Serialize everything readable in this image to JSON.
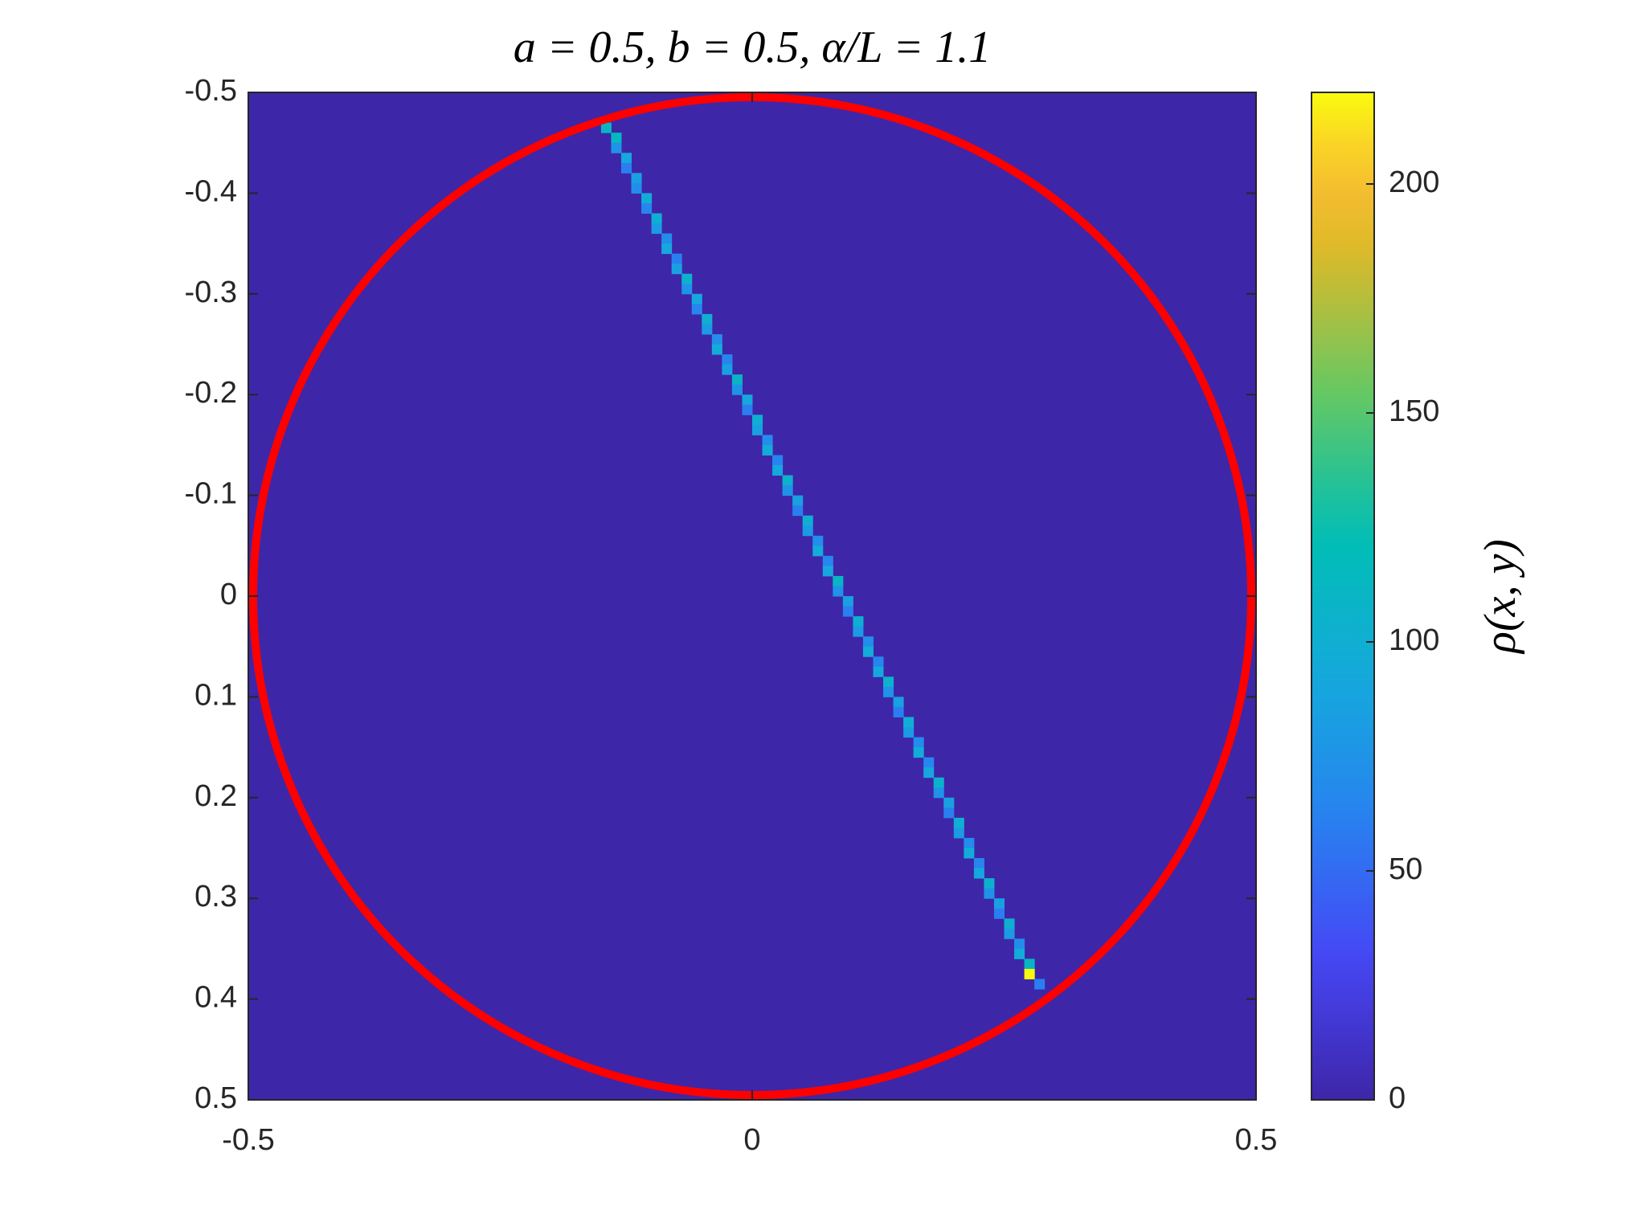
{
  "chart_data": {
    "type": "heatmap",
    "title": "a = 0.5,    b = 0.5,    α/L = 1.1",
    "colorbar_label": "ρ(x, y)",
    "colormap": "parula",
    "x": [
      -0.145,
      -0.135,
      -0.135,
      -0.125,
      -0.125,
      -0.115,
      -0.115,
      -0.105,
      -0.105,
      -0.095,
      -0.095,
      -0.085,
      -0.085,
      -0.075,
      -0.075,
      -0.065,
      -0.065,
      -0.055,
      -0.055,
      -0.045,
      -0.045,
      -0.035,
      -0.035,
      -0.025,
      -0.025,
      -0.015,
      -0.015,
      -0.005,
      -0.005,
      0.005,
      0.005,
      0.015,
      0.015,
      0.025,
      0.025,
      0.035,
      0.035,
      0.045,
      0.045,
      0.055,
      0.055,
      0.065,
      0.065,
      0.075,
      0.075,
      0.085,
      0.085,
      0.095,
      0.095,
      0.105,
      0.105,
      0.115,
      0.115,
      0.125,
      0.125,
      0.135,
      0.135,
      0.145,
      0.145,
      0.155,
      0.155,
      0.165,
      0.165,
      0.175,
      0.175,
      0.185,
      0.185,
      0.195,
      0.195,
      0.205,
      0.205,
      0.215,
      0.215,
      0.225,
      0.225,
      0.235,
      0.235,
      0.245,
      0.245,
      0.255,
      0.255,
      0.265,
      0.265,
      0.275,
      0.275,
      0.285
    ],
    "y": [
      -0.465,
      -0.455,
      -0.445,
      -0.435,
      -0.425,
      -0.415,
      -0.405,
      -0.395,
      -0.385,
      -0.375,
      -0.365,
      -0.355,
      -0.345,
      -0.335,
      -0.325,
      -0.315,
      -0.305,
      -0.295,
      -0.285,
      -0.275,
      -0.265,
      -0.255,
      -0.245,
      -0.235,
      -0.225,
      -0.215,
      -0.205,
      -0.195,
      -0.185,
      -0.175,
      -0.165,
      -0.155,
      -0.145,
      -0.135,
      -0.125,
      -0.115,
      -0.105,
      -0.095,
      -0.085,
      -0.075,
      -0.065,
      -0.055,
      -0.045,
      -0.035,
      -0.025,
      -0.015,
      -0.005,
      0.005,
      0.015,
      0.025,
      0.035,
      0.045,
      0.055,
      0.065,
      0.075,
      0.085,
      0.095,
      0.105,
      0.115,
      0.125,
      0.135,
      0.145,
      0.155,
      0.165,
      0.175,
      0.185,
      0.195,
      0.205,
      0.215,
      0.225,
      0.235,
      0.245,
      0.255,
      0.265,
      0.275,
      0.285,
      0.295,
      0.305,
      0.315,
      0.325,
      0.335,
      0.345,
      0.355,
      0.365,
      0.375,
      0.385
    ],
    "values": [
      110,
      115,
      75,
      90,
      60,
      85,
      70,
      95,
      65,
      100,
      80,
      70,
      90,
      60,
      85,
      105,
      75,
      90,
      65,
      100,
      80,
      70,
      95,
      65,
      85,
      110,
      75,
      90,
      60,
      100,
      85,
      70,
      95,
      65,
      90,
      105,
      75,
      85,
      60,
      100,
      80,
      70,
      95,
      65,
      90,
      110,
      75,
      85,
      60,
      100,
      80,
      70,
      95,
      65,
      90,
      105,
      75,
      85,
      60,
      100,
      80,
      70,
      95,
      65,
      90,
      105,
      75,
      85,
      60,
      100,
      80,
      70,
      95,
      65,
      90,
      105,
      75,
      85,
      60,
      100,
      80,
      70,
      95,
      110,
      220,
      60
    ],
    "xlim": [
      -0.5,
      0.5
    ],
    "xticks": [
      -0.5,
      0,
      0.5
    ],
    "ylim": [
      -0.5,
      0.5
    ],
    "yticks": [
      -0.5,
      -0.4,
      -0.3,
      -0.2,
      -0.1,
      0,
      0.1,
      0.2,
      0.3,
      0.4,
      0.5
    ],
    "y_direction": "reverse",
    "clim": [
      0,
      220
    ],
    "cticks": [
      0,
      50,
      100,
      150,
      200
    ],
    "circle_color": "#ff0000"
  }
}
